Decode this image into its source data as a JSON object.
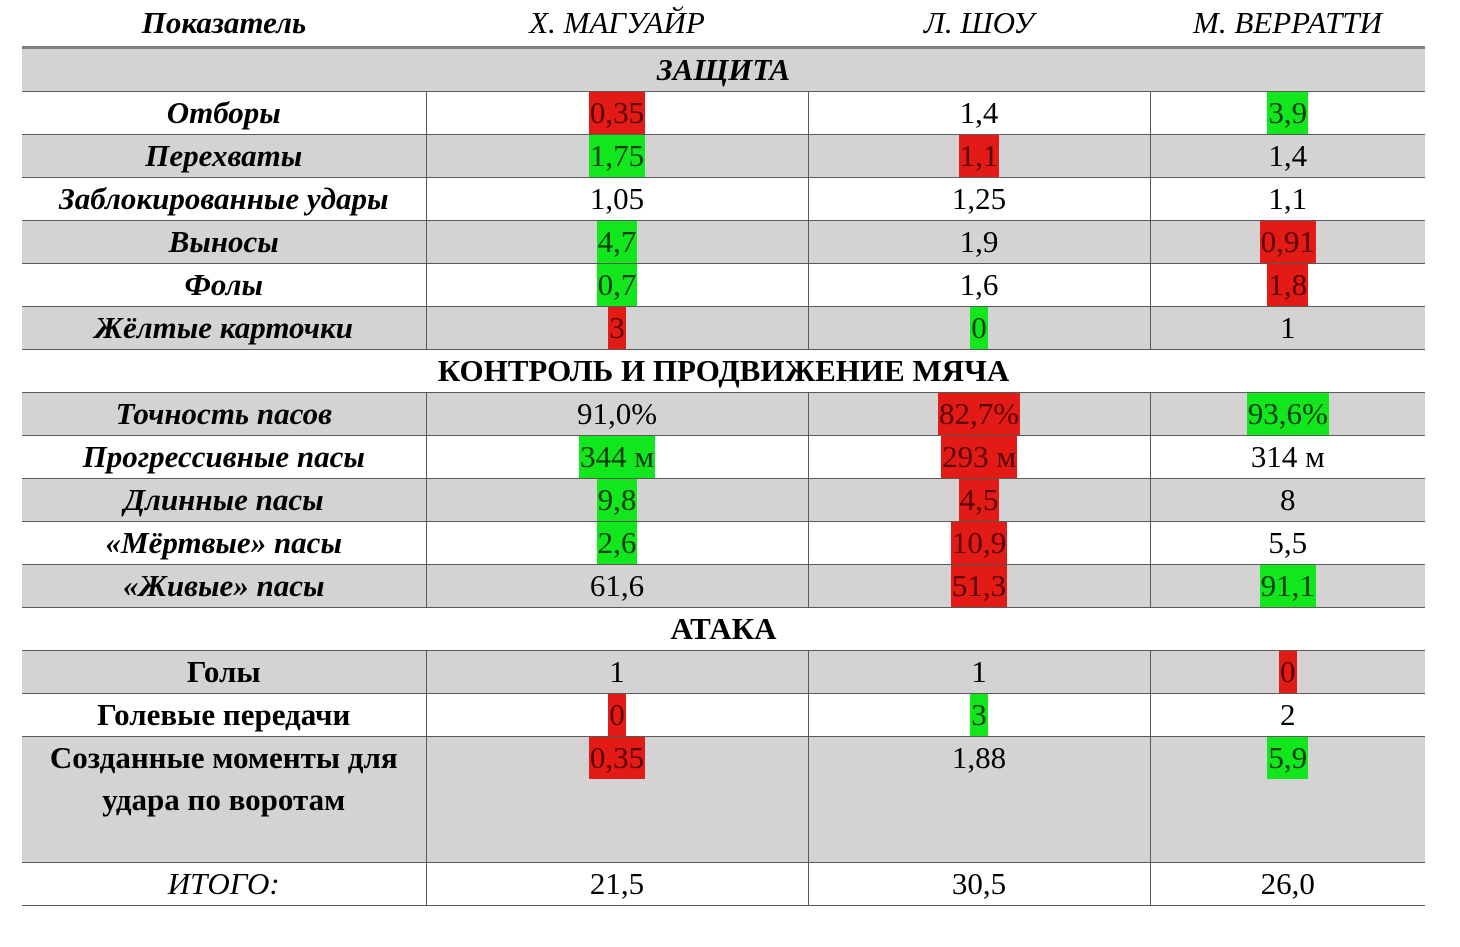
{
  "header": {
    "label": "Показатель",
    "players": [
      "Х. МАГУАЙР",
      "Л. ШОУ",
      "М. ВЕРРАТТИ"
    ]
  },
  "sections": [
    {
      "title": "ЗАЩИТА",
      "rows": [
        {
          "label": "Отборы",
          "values": [
            {
              "text": "0,35",
              "mark": "red"
            },
            {
              "text": "1,4",
              "mark": ""
            },
            {
              "text": "3,9",
              "mark": "green"
            }
          ]
        },
        {
          "label": "Перехваты",
          "values": [
            {
              "text": "1,75",
              "mark": "green"
            },
            {
              "text": "1,1",
              "mark": "red"
            },
            {
              "text": "1,4",
              "mark": ""
            }
          ]
        },
        {
          "label": "Заблокированные удары",
          "values": [
            {
              "text": "1,05",
              "mark": ""
            },
            {
              "text": "1,25",
              "mark": ""
            },
            {
              "text": "1,1",
              "mark": ""
            }
          ]
        },
        {
          "label": "Выносы",
          "values": [
            {
              "text": "4,7",
              "mark": "green"
            },
            {
              "text": "1,9",
              "mark": ""
            },
            {
              "text": "0,91",
              "mark": "red"
            }
          ]
        },
        {
          "label": "Фолы",
          "values": [
            {
              "text": "0,7",
              "mark": "green"
            },
            {
              "text": "1,6",
              "mark": ""
            },
            {
              "text": "1,8",
              "mark": "red"
            }
          ]
        },
        {
          "label": "Жёлтые карточки",
          "values": [
            {
              "text": "3",
              "mark": "red"
            },
            {
              "text": "0",
              "mark": "green"
            },
            {
              "text": "1",
              "mark": ""
            }
          ]
        }
      ]
    },
    {
      "title": "КОНТРОЛЬ И ПРОДВИЖЕНИЕ МЯЧА",
      "rows": [
        {
          "label": "Точность пасов",
          "values": [
            {
              "text": "91,0%",
              "mark": ""
            },
            {
              "text": "82,7%",
              "mark": "red"
            },
            {
              "text": "93,6%",
              "mark": "green"
            }
          ]
        },
        {
          "label": "Прогрессивные пасы",
          "values": [
            {
              "text": "344 м",
              "mark": "green"
            },
            {
              "text": "293 м",
              "mark": "red"
            },
            {
              "text": "314 м",
              "mark": ""
            }
          ]
        },
        {
          "label": "Длинные пасы",
          "values": [
            {
              "text": "9,8",
              "mark": "green"
            },
            {
              "text": "4,5",
              "mark": "red"
            },
            {
              "text": "8",
              "mark": ""
            }
          ]
        },
        {
          "label": "«Мёртвые» пасы",
          "values": [
            {
              "text": "2,6",
              "mark": "green"
            },
            {
              "text": "10,9",
              "mark": "red"
            },
            {
              "text": "5,5",
              "mark": ""
            }
          ]
        },
        {
          "label": "«Живые» пасы",
          "values": [
            {
              "text": "61,6",
              "mark": ""
            },
            {
              "text": "51,3",
              "mark": "red"
            },
            {
              "text": "91,1",
              "mark": "green"
            }
          ]
        }
      ]
    },
    {
      "title": "АТАКА",
      "rows": [
        {
          "label": "Голы",
          "values": [
            {
              "text": "1",
              "mark": ""
            },
            {
              "text": "1",
              "mark": ""
            },
            {
              "text": "0",
              "mark": "red"
            }
          ]
        },
        {
          "label": "Голевые передачи",
          "values": [
            {
              "text": "0",
              "mark": "red"
            },
            {
              "text": "3",
              "mark": "green"
            },
            {
              "text": "2",
              "mark": ""
            }
          ]
        },
        {
          "label": "Созданные моменты для удара по воротам",
          "values": [
            {
              "text": "0,35",
              "mark": "red"
            },
            {
              "text": "1,88",
              "mark": ""
            },
            {
              "text": "5,9",
              "mark": "green"
            }
          ]
        }
      ]
    }
  ],
  "total": {
    "label": "ИТОГО:",
    "values": [
      "21,5",
      "30,5",
      "26,0"
    ]
  },
  "colors": {
    "good": "#12e61c",
    "bad": "#e31b16",
    "row_shade": "#d3d3d3"
  }
}
